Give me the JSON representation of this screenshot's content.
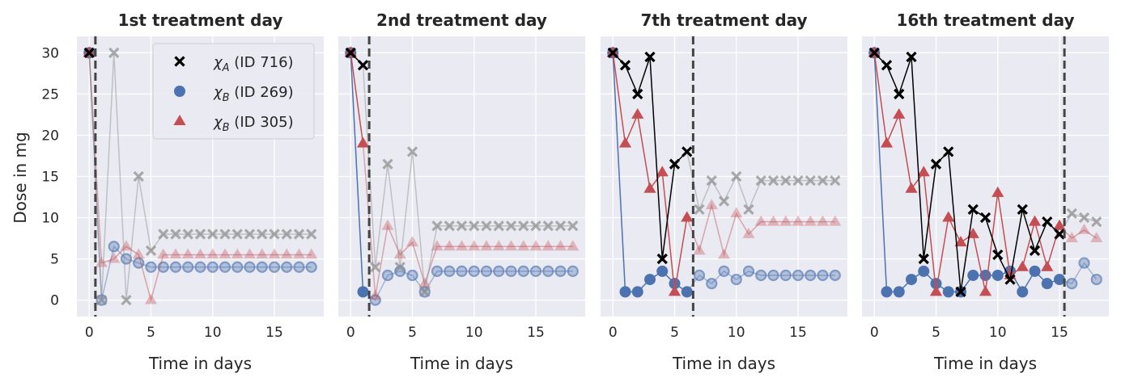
{
  "colors": {
    "chi_a": "#000000",
    "chi_b_269": "#4c72b0",
    "chi_b_305": "#c44e52",
    "faded_a": "#8c8c8c",
    "axes_bg": "#eaeaf2",
    "grid": "#ffffff",
    "marker_line": "#444444"
  },
  "chart_data": {
    "type": "line",
    "ylabel": "Dose in mg",
    "ylim": [
      -2,
      32
    ],
    "xlim": [
      -1,
      19
    ],
    "yticks": [
      0,
      5,
      10,
      15,
      20,
      25,
      30
    ],
    "xticks": [
      0,
      5,
      10,
      15
    ],
    "grid": true,
    "legend": {
      "placement": "top-right",
      "panel": 0,
      "entries": [
        {
          "symbol": "χ",
          "subscript": "A",
          "suffix": " (ID 716)",
          "marker": "x",
          "series": "chi_a"
        },
        {
          "symbol": "χ",
          "subscript": "B",
          "suffix": " (ID 269)",
          "marker": "circle",
          "series": "chi_b_269"
        },
        {
          "symbol": "χ",
          "subscript": "B",
          "suffix": " (ID 305)",
          "marker": "triangle",
          "series": "chi_b_305"
        }
      ]
    },
    "x": [
      0,
      1,
      2,
      3,
      4,
      5,
      6,
      7,
      8,
      9,
      10,
      11,
      12,
      13,
      14,
      15,
      16,
      17,
      18
    ],
    "panels": [
      {
        "title": "1st treatment day",
        "xlabel": "Time in days",
        "treatment_day": 0.5,
        "series": {
          "chi_a": [
            30,
            0,
            30,
            0,
            15,
            6,
            8,
            8,
            8,
            8,
            8,
            8,
            8,
            8,
            8,
            8,
            8,
            8,
            8
          ],
          "chi_b_269": [
            30,
            0,
            6.5,
            5,
            4.5,
            4,
            4,
            4,
            4,
            4,
            4,
            4,
            4,
            4,
            4,
            4,
            4,
            4,
            4
          ],
          "chi_b_305": [
            30,
            4.5,
            5,
            6.5,
            5.5,
            0,
            5.5,
            5.5,
            5.5,
            5.5,
            5.5,
            5.5,
            5.5,
            5.5,
            5.5,
            5.5,
            5.5,
            5.5,
            5.5
          ]
        }
      },
      {
        "title": "2nd treatment day",
        "xlabel": "Time in days",
        "treatment_day": 1.5,
        "series": {
          "chi_a": [
            30,
            28.5,
            4,
            16.5,
            4,
            18,
            1,
            9,
            9,
            9,
            9,
            9,
            9,
            9,
            9,
            9,
            9,
            9,
            9
          ],
          "chi_b_269": [
            30,
            1,
            0,
            3,
            3.5,
            3,
            1,
            3.5,
            3.5,
            3.5,
            3.5,
            3.5,
            3.5,
            3.5,
            3.5,
            3.5,
            3.5,
            3.5,
            3.5
          ],
          "chi_b_305": [
            30,
            19,
            0.5,
            9,
            5.5,
            7,
            2,
            6.5,
            6.5,
            6.5,
            6.5,
            6.5,
            6.5,
            6.5,
            6.5,
            6.5,
            6.5,
            6.5,
            6.5
          ]
        }
      },
      {
        "title": "7th treatment day",
        "xlabel": "Time in days",
        "treatment_day": 6.5,
        "series": {
          "chi_a": [
            30,
            28.5,
            25,
            29.5,
            5,
            16.5,
            18,
            11,
            14.5,
            12,
            15,
            11,
            14.5,
            14.5,
            14.5,
            14.5,
            14.5,
            14.5,
            14.5
          ],
          "chi_b_269": [
            30,
            1,
            1,
            2.5,
            3.5,
            2,
            1,
            3,
            2,
            3.5,
            2.5,
            3.5,
            3,
            3,
            3,
            3,
            3,
            3,
            3
          ],
          "chi_b_305": [
            30,
            19,
            22.5,
            13.5,
            15.5,
            1,
            10,
            6,
            11.5,
            5.5,
            10.5,
            8,
            9.5,
            9.5,
            9.5,
            9.5,
            9.5,
            9.5,
            9.5
          ]
        }
      },
      {
        "title": "16th treatment day",
        "xlabel": "Time in days",
        "treatment_day": 15.4,
        "series": {
          "chi_a": [
            30,
            28.5,
            25,
            29.5,
            5,
            16.5,
            18,
            1,
            11,
            10,
            5.5,
            2.5,
            11,
            6,
            9.5,
            8,
            10.5,
            10,
            9.5
          ],
          "chi_b_269": [
            30,
            1,
            1,
            2.5,
            3.5,
            2,
            1,
            1,
            3,
            3,
            3,
            3.5,
            1,
            3.5,
            2,
            2.5,
            2,
            4.5,
            2.5
          ],
          "chi_b_305": [
            30,
            19,
            22.5,
            13.5,
            15.5,
            1,
            10,
            7,
            8,
            1,
            13,
            3,
            4,
            9.5,
            4,
            9,
            7.5,
            8.5,
            7.5
          ]
        }
      }
    ]
  }
}
